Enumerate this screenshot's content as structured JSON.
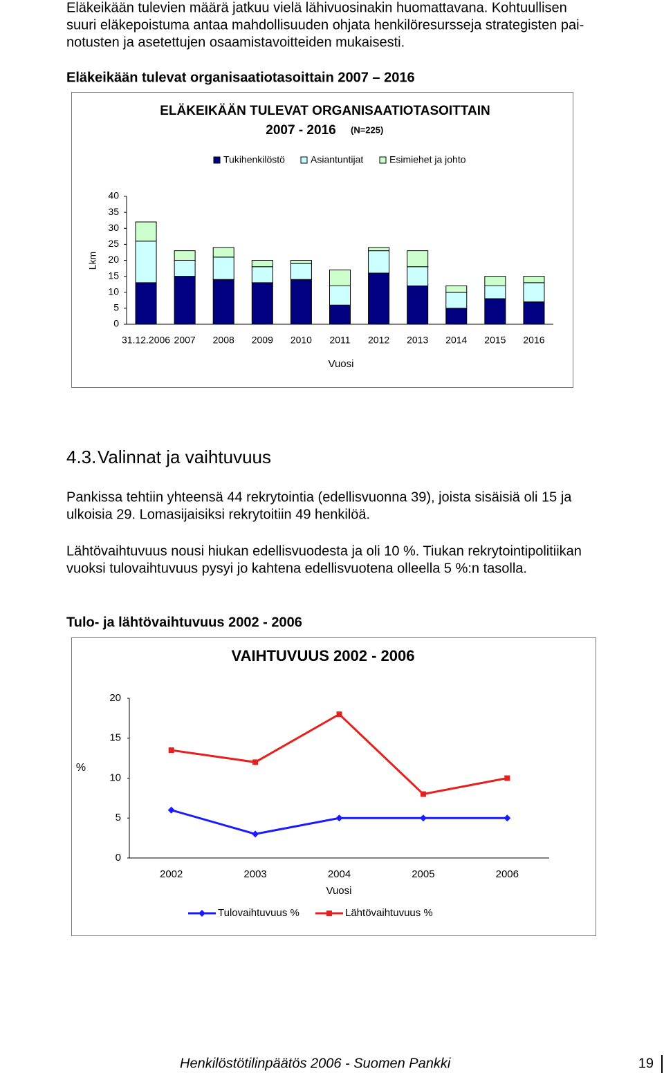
{
  "intro": {
    "lines": [
      "Eläkeikään tulevien määrä jatkuu vielä lähivuosinakin huomattavana. Kohtuullisen",
      "suuri eläkepoistuma antaa mahdollisuuden ohjata henkilöresursseja strategisten pai-",
      "notusten ja asetettujen osaamistavoitteiden mukaisesti."
    ]
  },
  "figure1_heading": "Eläkeikään tulevat organisaatiotasoittain 2007 – 2016",
  "section": {
    "number": "4.3.",
    "title": "Valinnat ja vaihtuvuus"
  },
  "paragraphs": [
    {
      "lines": [
        "Pankissa tehtiin yhteensä 44 rekrytointia (edellisvuonna 39), joista sisäisiä oli 15 ja",
        "ulkoisia 29. Lomasijaisiksi rekrytoitiin 49 henkilöä."
      ]
    },
    {
      "lines": [
        "Lähtövaihtuvuus nousi hiukan edellisvuodesta ja oli 10 %. Tiukan rekrytointipolitiikan",
        "vuoksi tulovaihtuvuus pysyi jo kahtena edellisvuotena olleella 5 %:n tasolla."
      ]
    }
  ],
  "figure2_heading": "Tulo- ja lähtövaihtuvuus 2002 - 2006",
  "chart_data": [
    {
      "type": "stacked-bar",
      "title": "ELÄKEIKÄÄN TULEVAT ORGANISAATIOTASOITTAIN",
      "subtitle": "2007 - 2016",
      "note": "(N=225)",
      "x_label": "Vuosi",
      "y_label": "Lkm",
      "categories": [
        "31.12.2006",
        "2007",
        "2008",
        "2009",
        "2010",
        "2011",
        "2012",
        "2013",
        "2014",
        "2015",
        "2016"
      ],
      "series": [
        {
          "name": "Tukihenkilöstö",
          "color": "#000080",
          "values": [
            13,
            15,
            14,
            13,
            14,
            6,
            16,
            12,
            5,
            8,
            7
          ]
        },
        {
          "name": "Asiantuntijat",
          "color": "#ccffff",
          "values": [
            13,
            5,
            7,
            5,
            5,
            6,
            7,
            6,
            5,
            4,
            6
          ]
        },
        {
          "name": "Esimiehet ja johto",
          "color": "#ccffcc",
          "values": [
            6,
            3,
            3,
            2,
            1,
            5,
            1,
            5,
            2,
            3,
            2
          ]
        }
      ],
      "ylim": [
        0,
        40
      ],
      "yticks": [
        0,
        5,
        10,
        15,
        20,
        25,
        30,
        35,
        40
      ],
      "legend": "top"
    },
    {
      "type": "line",
      "title": "VAIHTUVUUS 2002 - 2006",
      "x_label": "Vuosi",
      "y_label": "%",
      "categories": [
        "2002",
        "2003",
        "2004",
        "2005",
        "2006"
      ],
      "series": [
        {
          "name": "Tulovaihtuvuus %",
          "color": "#1a1aff",
          "marker": "diamond",
          "values": [
            6,
            3,
            5,
            5,
            5
          ]
        },
        {
          "name": "Lähtövaihtuvuus %",
          "color": "#e5201e",
          "marker": "square",
          "values": [
            13.5,
            12,
            18,
            8,
            10
          ]
        }
      ],
      "ylim": [
        0,
        20
      ],
      "yticks": [
        0,
        5,
        10,
        15,
        20
      ],
      "legend": "bottom"
    }
  ],
  "footer": {
    "text": "Henkilöstötilinpäätös 2006 - Suomen Pankki",
    "page": "19"
  }
}
